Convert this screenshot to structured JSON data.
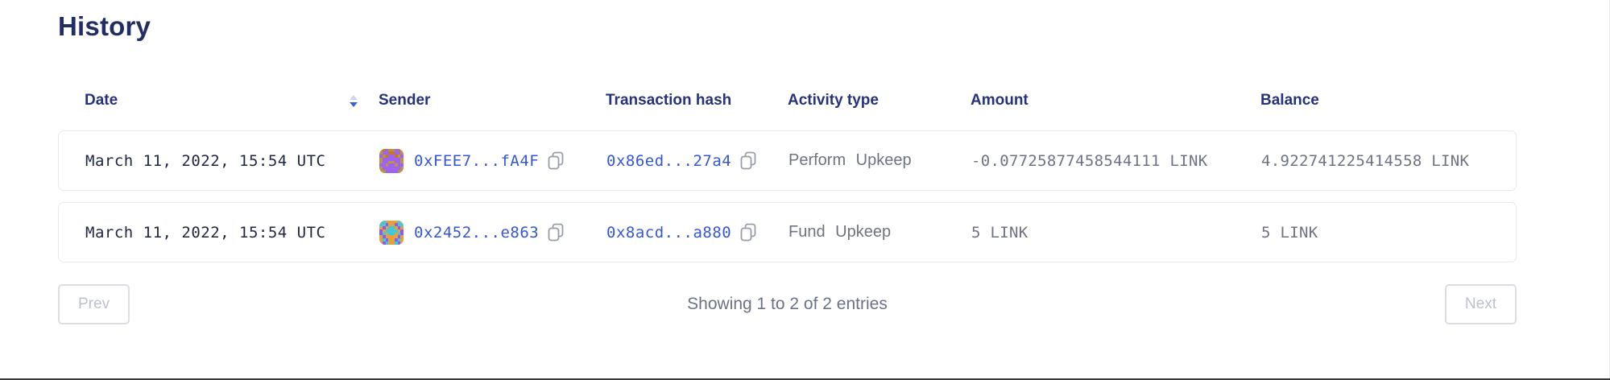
{
  "page": {
    "title": "History"
  },
  "table": {
    "columns": [
      {
        "key": "date",
        "label": "Date",
        "sortable": true,
        "sort": "desc"
      },
      {
        "key": "sender",
        "label": "Sender"
      },
      {
        "key": "tx",
        "label": "Transaction hash"
      },
      {
        "key": "activity",
        "label": "Activity type"
      },
      {
        "key": "amount",
        "label": "Amount"
      },
      {
        "key": "balance",
        "label": "Balance"
      }
    ],
    "rows": [
      {
        "date": "March 11, 2022, 15:54 UTC",
        "sender": "0xFEE7...fA4F",
        "tx": "0x86ed...27a4",
        "activity": "Perform Upkeep",
        "amount": "-0.07725877458544111 LINK",
        "balance": "4.922741225414558 LINK",
        "avatar": {
          "bg": "#bd9243",
          "fg": "#9d63f2",
          "spot": "#c1762e"
        }
      },
      {
        "date": "March 11, 2022, 15:54 UTC",
        "sender": "0x2452...e863",
        "tx": "0x8acd...a880",
        "activity": "Fund Upkeep",
        "amount": "5 LINK",
        "balance": "5 LINK",
        "avatar": {
          "bg": "#e2a33c",
          "fg": "#43c7dd",
          "spot": "#8d5bef"
        }
      }
    ]
  },
  "pagination": {
    "prev_label": "Prev",
    "status": "Showing 1 to 2 of 2 entries",
    "next_label": "Next"
  },
  "colors": {
    "heading": "#222d63",
    "link": "#3457d5",
    "muted_text": "#6e7383",
    "row_border": "#e7e9f0",
    "sort_active": "#3b63d8",
    "sort_inactive": "#ccd5ee",
    "disabled_button_text": "#bdc1cb"
  }
}
